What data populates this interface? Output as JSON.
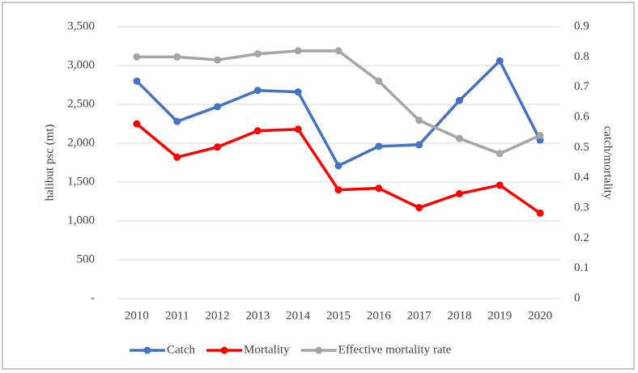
{
  "chart_data": {
    "type": "line",
    "categories": [
      "2010",
      "2011",
      "2012",
      "2013",
      "2014",
      "2015",
      "2016",
      "2017",
      "2018",
      "2019",
      "2020"
    ],
    "series": [
      {
        "name": "Catch",
        "color": "#4472c4",
        "values": [
          2800,
          2280,
          2470,
          2680,
          2660,
          1710,
          1960,
          1980,
          2550,
          3060,
          2040
        ]
      },
      {
        "name": "Mortality",
        "color": "#ff0000",
        "values": [
          2250,
          1820,
          1950,
          2160,
          2180,
          1400,
          1420,
          1170,
          1350,
          1460,
          1100
        ]
      },
      {
        "name": "Effective mortality rate",
        "color": "#a5a5a5",
        "axis": "y2",
        "values": [
          0.8,
          0.8,
          0.79,
          0.81,
          0.82,
          0.82,
          0.72,
          0.59,
          0.53,
          0.48,
          0.54
        ]
      }
    ],
    "y_label": "halibut psc (mt)",
    "y2_label": "catch/mortality",
    "ylim": [
      0,
      3500
    ],
    "yticks": [
      {
        "value": 0,
        "label": "-"
      },
      500,
      {
        "value": 1000,
        "label": "1,000"
      },
      {
        "value": 1500,
        "label": "1,500"
      },
      {
        "value": 2000,
        "label": "2,000"
      },
      {
        "value": 2500,
        "label": "2,500"
      },
      {
        "value": 3000,
        "label": "3,000"
      },
      {
        "value": 3500,
        "label": "3,500"
      }
    ],
    "y2lim": [
      0,
      0.9
    ],
    "y2ticks": [
      0,
      0.1,
      0.2,
      0.3,
      0.4,
      0.5,
      0.6,
      0.7,
      0.8,
      0.9
    ],
    "grid": true,
    "legend": "bottom"
  }
}
